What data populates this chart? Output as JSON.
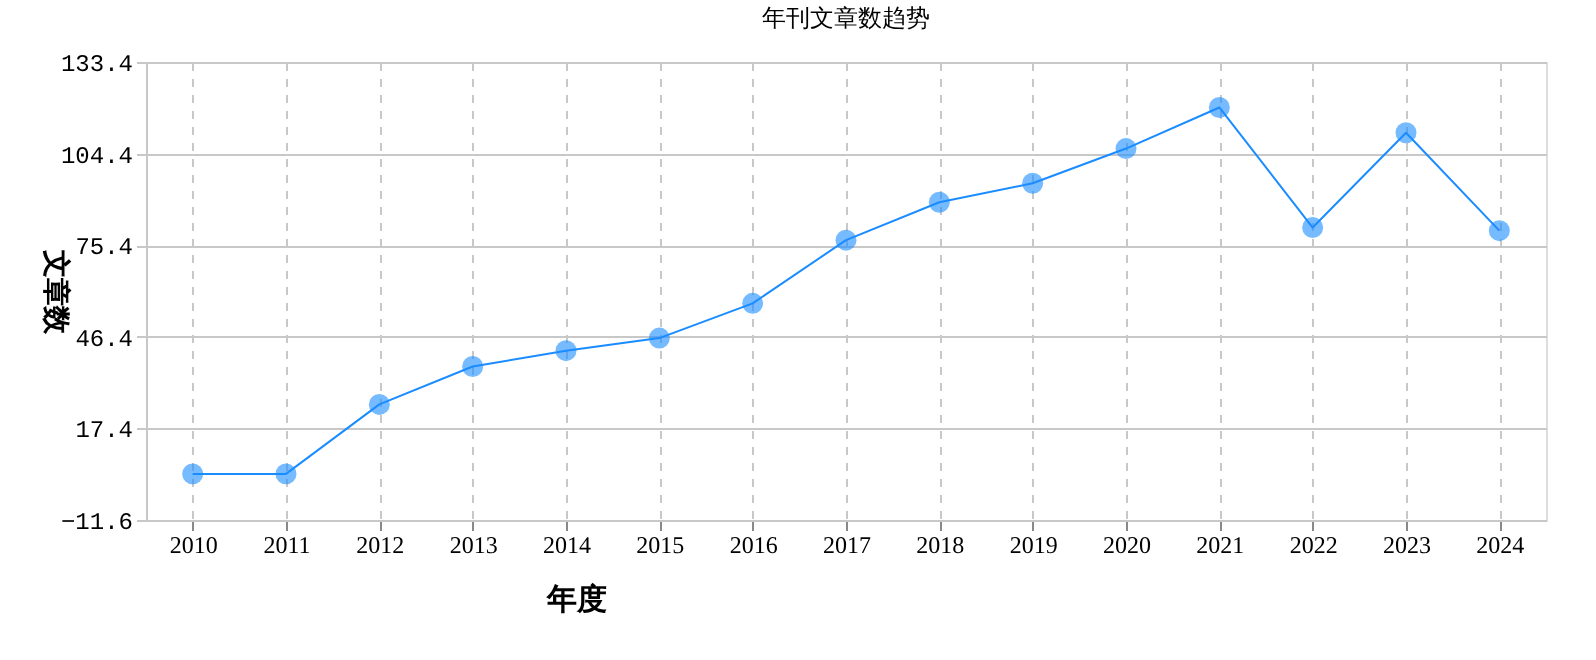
{
  "chart_data": {
    "type": "line",
    "title": "年刊文章数趋势",
    "xlabel": "年度",
    "ylabel": "文章数",
    "categories": [
      "2010",
      "2011",
      "2012",
      "2013",
      "2014",
      "2015",
      "2016",
      "2017",
      "2018",
      "2019",
      "2020",
      "2021",
      "2022",
      "2023",
      "2024"
    ],
    "series": [
      {
        "color": "#1a8cff",
        "values": [
          3,
          3,
          25,
          37,
          42,
          46,
          57,
          77,
          89,
          95,
          106,
          119,
          81,
          111,
          80
        ]
      }
    ],
    "ylim": [
      -11.6,
      133.4
    ],
    "yticks": [
      -11.6,
      17.4,
      46.4,
      75.4,
      104.4,
      133.4
    ],
    "grid": true,
    "marker": "circle",
    "line_style": "solid"
  }
}
